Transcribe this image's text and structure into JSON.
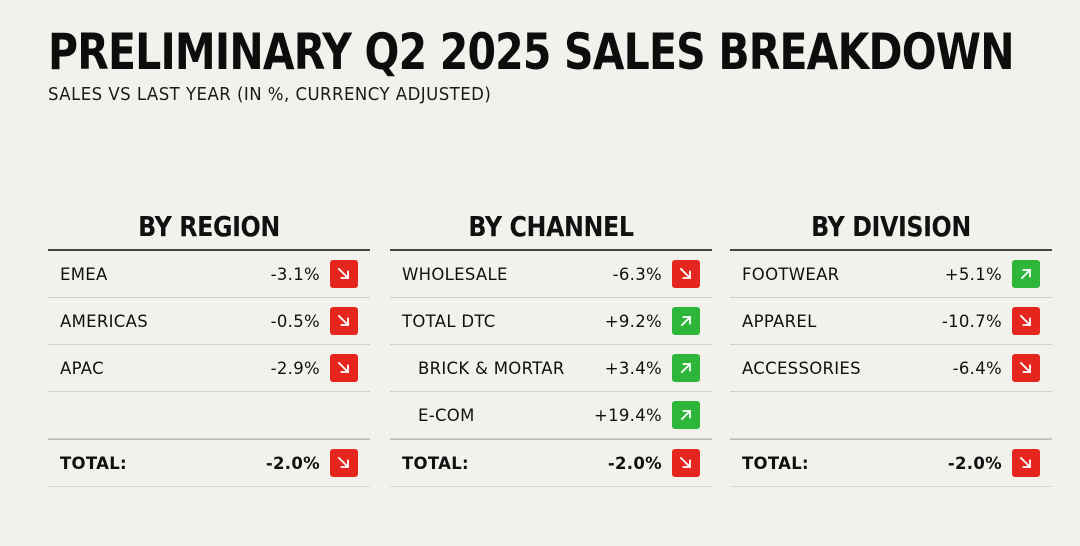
{
  "title": "PRELIMINARY Q2 2025 SALES BREAKDOWN",
  "subtitle": "SALES VS LAST YEAR (IN %, CURRENCY ADJUSTED)",
  "colors": {
    "down": "#e4261e",
    "up": "#2db63a",
    "background": "#f2f1ec"
  },
  "panels": [
    {
      "heading": "BY REGION",
      "rows": [
        {
          "label": "EMEA",
          "value": "-3.1%",
          "trend": "down"
        },
        {
          "label": "AMERICAS",
          "value": "-0.5%",
          "trend": "down"
        },
        {
          "label": "APAC",
          "value": "-2.9%",
          "trend": "down"
        },
        {
          "label": "",
          "value": "",
          "trend": ""
        }
      ],
      "total": {
        "label": "TOTAL:",
        "value": "-2.0%",
        "trend": "down"
      }
    },
    {
      "heading": "BY CHANNEL",
      "rows": [
        {
          "label": "WHOLESALE",
          "value": "-6.3%",
          "trend": "down"
        },
        {
          "label": "TOTAL DTC",
          "value": "+9.2%",
          "trend": "up"
        },
        {
          "label": "BRICK & MORTAR",
          "value": "+3.4%",
          "trend": "up",
          "indent": true
        },
        {
          "label": "E-COM",
          "value": "+19.4%",
          "trend": "up",
          "indent": true
        }
      ],
      "total": {
        "label": "TOTAL:",
        "value": "-2.0%",
        "trend": "down"
      }
    },
    {
      "heading": "BY DIVISION",
      "rows": [
        {
          "label": "FOOTWEAR",
          "value": "+5.1%",
          "trend": "up"
        },
        {
          "label": "APPAREL",
          "value": "-10.7%",
          "trend": "down"
        },
        {
          "label": "ACCESSORIES",
          "value": "-6.4%",
          "trend": "down"
        },
        {
          "label": "",
          "value": "",
          "trend": ""
        }
      ],
      "total": {
        "label": "TOTAL:",
        "value": "-2.0%",
        "trend": "down"
      }
    }
  ]
}
